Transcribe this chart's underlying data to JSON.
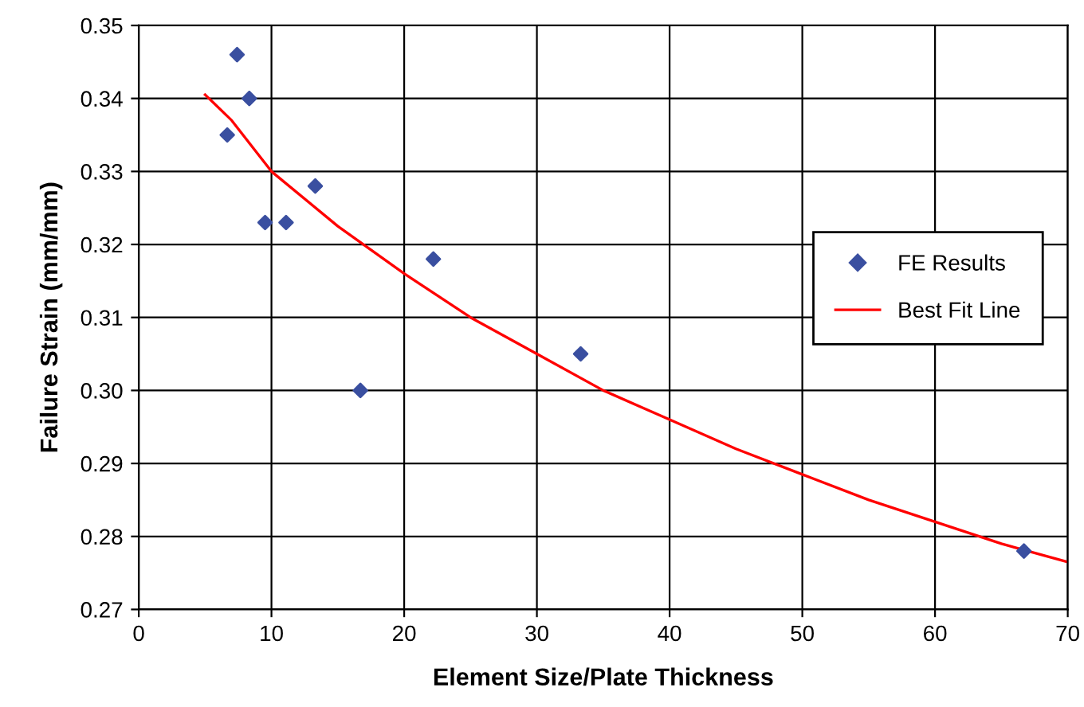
{
  "chart_data": {
    "type": "scatter",
    "xlabel": "Element Size/Plate Thickness",
    "ylabel": "Failure Strain (mm/mm)",
    "series": [
      {
        "name": "FE Results",
        "color": "#3a4fa0",
        "marker": "diamond",
        "x": [
          6.67,
          7.41,
          8.33,
          9.52,
          11.1,
          13.3,
          16.7,
          22.2,
          33.3,
          66.7
        ],
        "values": [
          0.335,
          0.346,
          0.34,
          0.323,
          0.323,
          0.328,
          0.3,
          0.318,
          0.305,
          0.278
        ]
      },
      {
        "name": "Best Fit Line",
        "type": "line",
        "color": "#ff0000",
        "line_style": "solid",
        "x": [
          5,
          7,
          10,
          15,
          20,
          25,
          30,
          35,
          40,
          45,
          50,
          55,
          60,
          65,
          70
        ],
        "values": [
          0.3405,
          0.337,
          0.33,
          0.3225,
          0.316,
          0.31,
          0.305,
          0.3,
          0.296,
          0.292,
          0.2885,
          0.285,
          0.282,
          0.279,
          0.2765
        ]
      }
    ],
    "xlim": [
      0,
      70
    ],
    "xticks": [
      0,
      10,
      20,
      30,
      40,
      50,
      60,
      70
    ],
    "ylim": [
      0.27,
      0.35
    ],
    "yticks": [
      {
        "value": 0.27,
        "label": "0.27"
      },
      {
        "value": 0.28,
        "label": "0.28"
      },
      {
        "value": 0.29,
        "label": "0.29"
      },
      {
        "value": 0.3,
        "label": "0.30"
      },
      {
        "value": 0.31,
        "label": "0.31"
      },
      {
        "value": 0.32,
        "label": "0.32"
      },
      {
        "value": 0.33,
        "label": "0.33"
      },
      {
        "value": 0.34,
        "label": "0.34"
      },
      {
        "value": 0.35,
        "label": "0.35"
      }
    ],
    "grid": true,
    "legend": "right"
  }
}
